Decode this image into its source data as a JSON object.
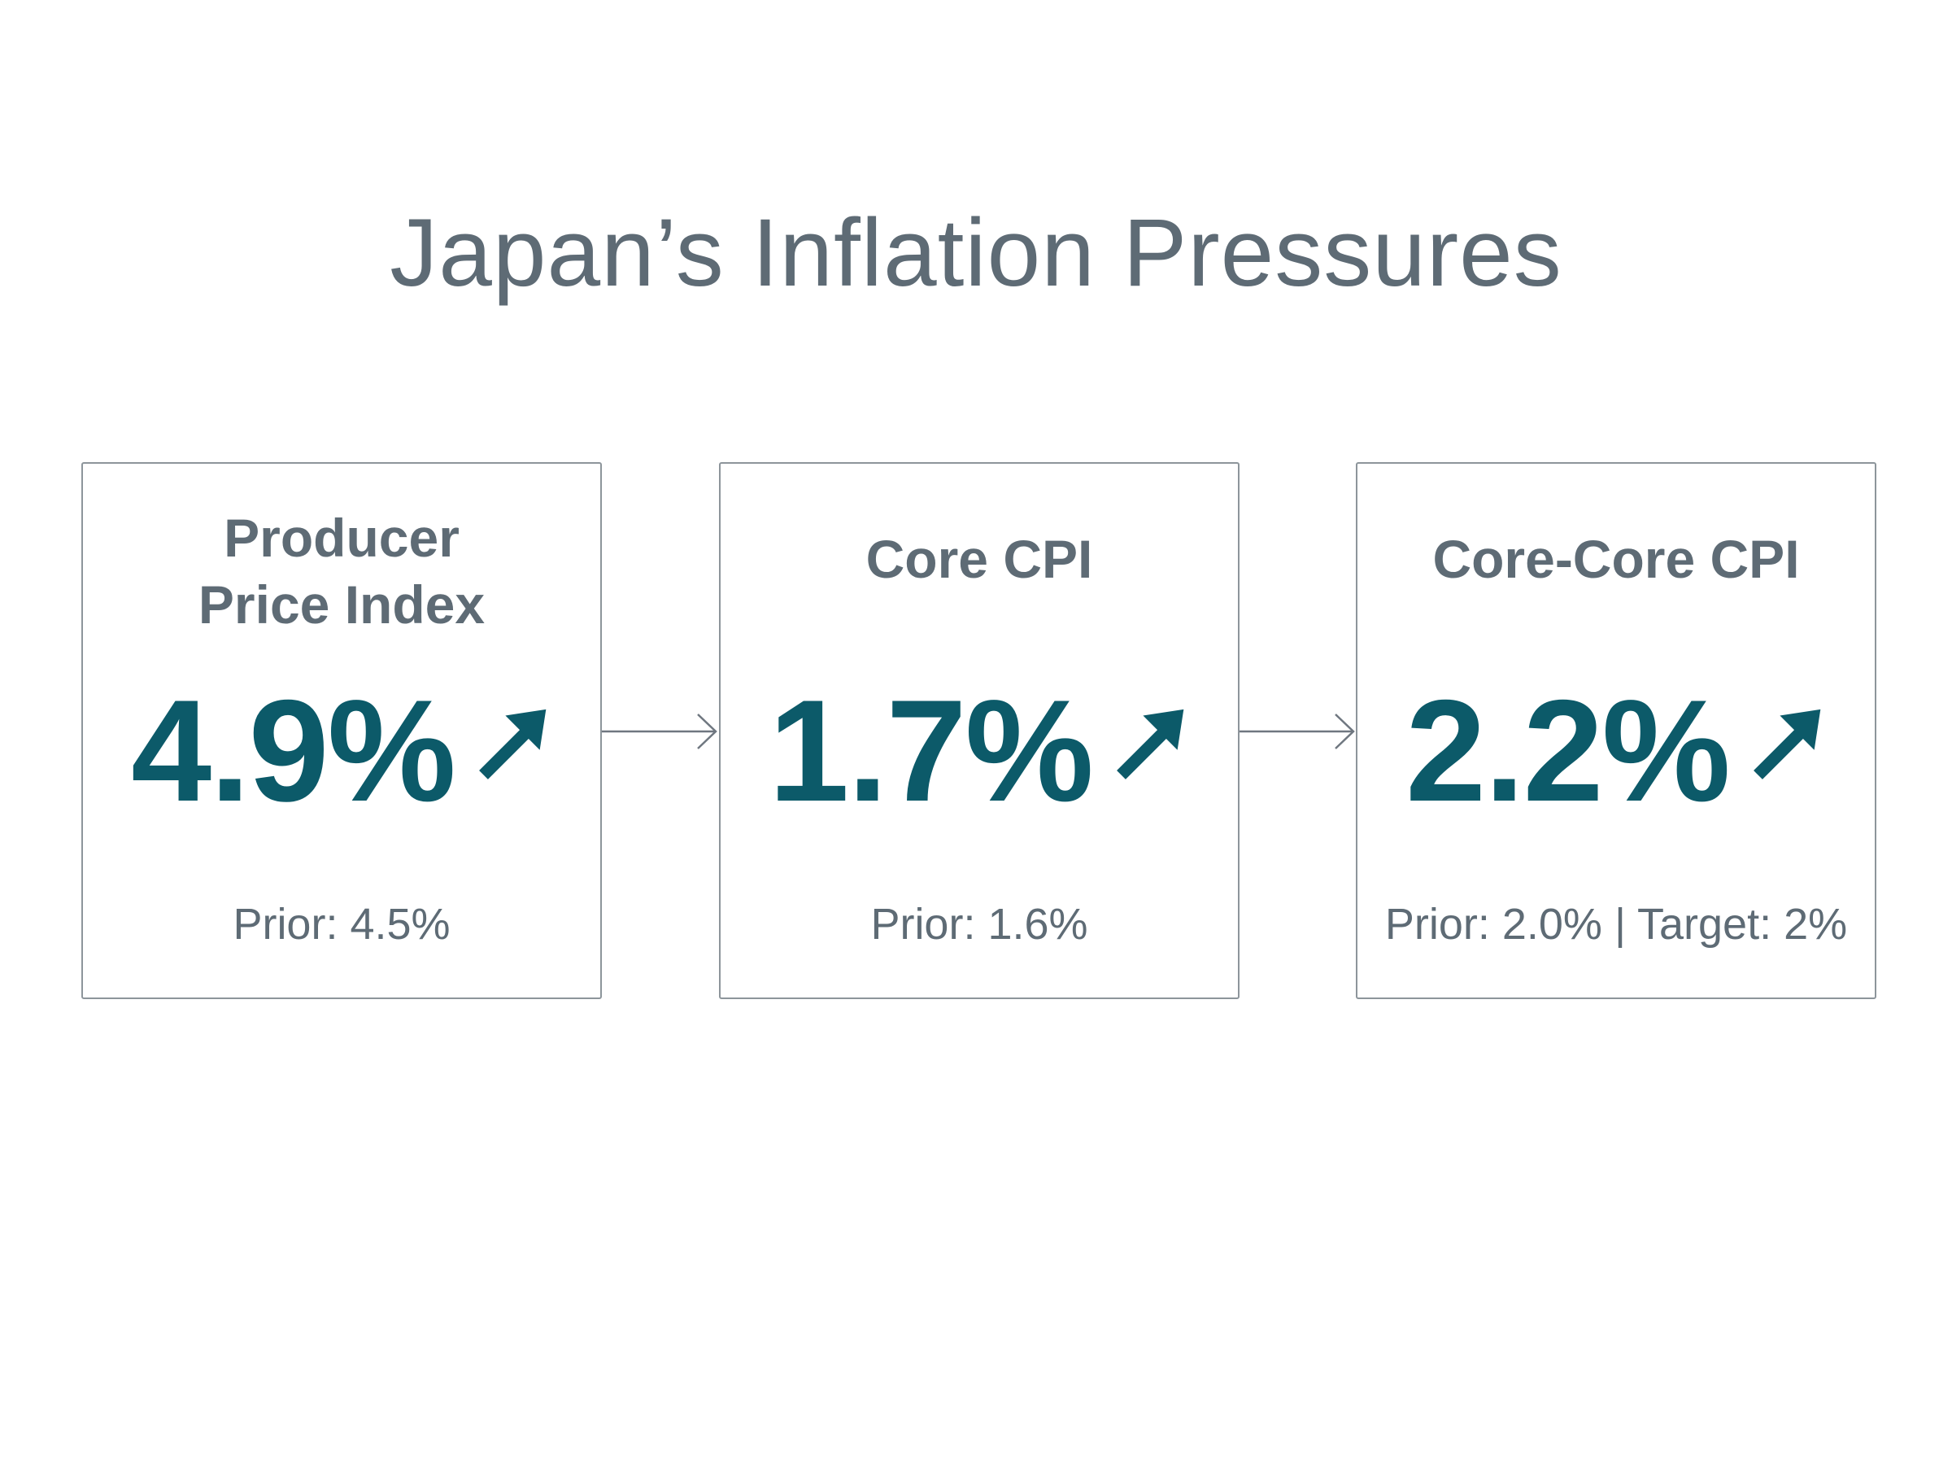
{
  "title": "Japan’s Inflation Pressures",
  "cards": [
    {
      "title": "Producer Price Index",
      "value": "4.9%",
      "prior": "Prior: 4.5%",
      "trend_icon": "arrow-up-right-icon"
    },
    {
      "title": "Core CPI",
      "value": "1.7%",
      "prior": "Prior: 1.6%",
      "trend_icon": "arrow-up-right-icon"
    },
    {
      "title": "Core-Core CPI",
      "value": "2.2%",
      "prior": "Prior: 2.0% | Target: 2%",
      "trend_icon": "arrow-up-right-icon"
    }
  ],
  "connector_icon": "arrow-right-icon",
  "colors": {
    "value": "#0c5a69",
    "text": "#5e6b75",
    "border": "#8d959b",
    "connector": "#6f7780"
  }
}
